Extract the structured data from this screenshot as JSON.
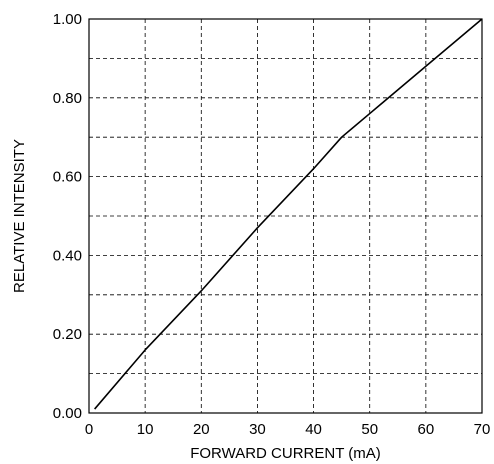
{
  "chart_data": {
    "type": "line",
    "title": "",
    "xlabel": "FORWARD CURRENT (mA)",
    "ylabel": "RELATIVE INTENSITY",
    "xlim": [
      0,
      70
    ],
    "ylim": [
      0,
      1
    ],
    "x_ticks": [
      0,
      10,
      20,
      30,
      40,
      50,
      60,
      70
    ],
    "x_tick_labels": [
      "0",
      "10",
      "20",
      "30",
      "40",
      "50",
      "60",
      "70"
    ],
    "y_ticks": [
      0,
      0.2,
      0.4,
      0.6,
      0.8,
      1.0
    ],
    "y_tick_labels": [
      "0.00",
      "0.20",
      "0.40",
      "0.60",
      "0.80",
      "1.00"
    ],
    "grid": true,
    "grid_style": "dashed",
    "x_grid_step": 10,
    "y_grid_step": 0.1,
    "series": [
      {
        "x": [
          1,
          10,
          20,
          30,
          40,
          45,
          50,
          60,
          70
        ],
        "y": [
          0.01,
          0.16,
          0.31,
          0.47,
          0.62,
          0.7,
          0.76,
          0.88,
          1.0
        ]
      }
    ],
    "colors": {
      "line": "#000000",
      "grid": "#000000",
      "frame": "#000000",
      "background": "#ffffff"
    }
  }
}
